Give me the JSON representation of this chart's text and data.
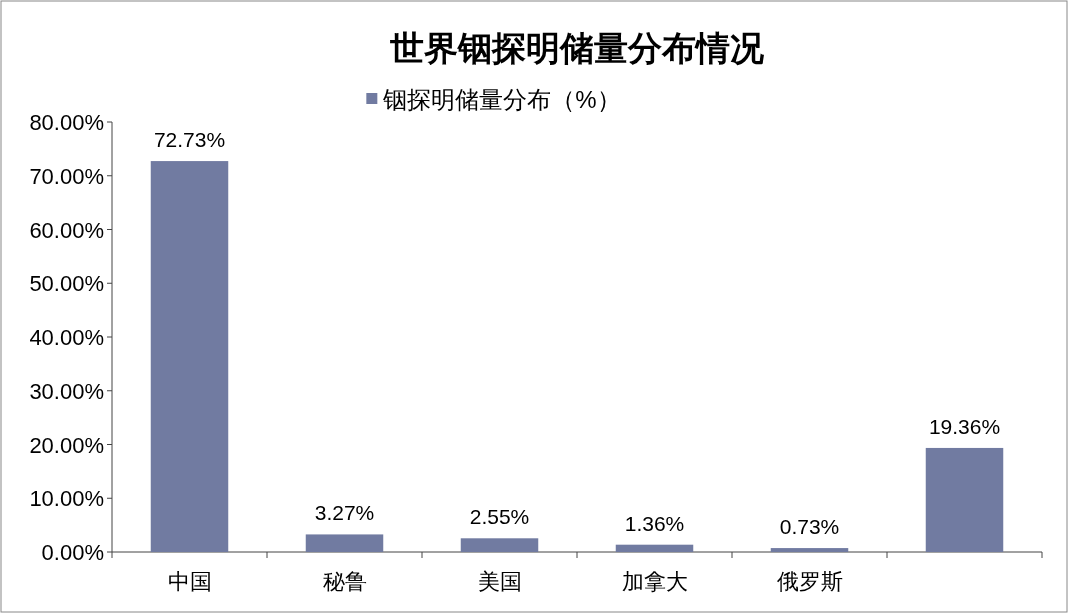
{
  "chart_data": {
    "type": "bar",
    "title": "世界铟探明储量分布情况",
    "categories": [
      "中国",
      "秘鲁",
      "美国",
      "加拿大",
      "俄罗斯",
      null
    ],
    "series": [
      {
        "name": "铟探明储量分布（%）",
        "color": "#717ba1",
        "values": [
          72.73,
          3.27,
          2.55,
          1.36,
          0.73,
          19.36
        ]
      }
    ],
    "value_labels": [
      "72.73%",
      "3.27%",
      "2.55%",
      "1.36%",
      "0.73%",
      "19.36%"
    ],
    "ylim": [
      0,
      80
    ],
    "yticks": [
      {
        "value": 0,
        "label": "0.00%"
      },
      {
        "value": 10,
        "label": "10.00%"
      },
      {
        "value": 20,
        "label": "20.00%"
      },
      {
        "value": 30,
        "label": "30.00%"
      },
      {
        "value": 40,
        "label": "40.00%"
      },
      {
        "value": 50,
        "label": "50.00%"
      },
      {
        "value": 60,
        "label": "60.00%"
      },
      {
        "value": 70,
        "label": "70.00%"
      },
      {
        "value": 80,
        "label": "80.00%"
      }
    ],
    "grid": false,
    "legend": "top"
  }
}
